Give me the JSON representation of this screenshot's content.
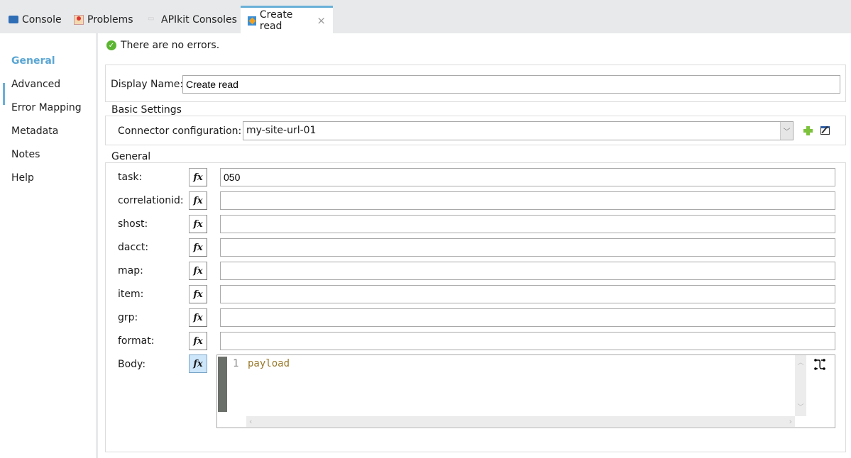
{
  "tabs": [
    {
      "label": "Console",
      "icon": "console-icon"
    },
    {
      "label": "Problems",
      "icon": "problems-icon"
    },
    {
      "label": "APIkit Consoles",
      "icon": "apikit-icon"
    },
    {
      "label": "Create read",
      "icon": "connector-icon",
      "active": true,
      "close": "×"
    }
  ],
  "nav": {
    "items": [
      "General",
      "Advanced",
      "Error Mapping",
      "Metadata",
      "Notes",
      "Help"
    ],
    "selected": "General"
  },
  "status": {
    "text": "There are no errors.",
    "icon": "check-circle-icon"
  },
  "display_name": {
    "label": "Display Name:",
    "value": "Create read"
  },
  "basic_settings": {
    "legend": "Basic Settings",
    "connector_label": "Connector configuration:",
    "connector_value": "my-site-url-01"
  },
  "general": {
    "legend": "General",
    "fx": "fx",
    "fields": [
      {
        "label": "task:",
        "value": "050"
      },
      {
        "label": "correlationid:",
        "value": ""
      },
      {
        "label": "shost:",
        "value": ""
      },
      {
        "label": "dacct:",
        "value": ""
      },
      {
        "label": "map:",
        "value": ""
      },
      {
        "label": "item:",
        "value": ""
      },
      {
        "label": "grp:",
        "value": ""
      },
      {
        "label": "format:",
        "value": ""
      }
    ],
    "body": {
      "label": "Body:",
      "line_number": "1",
      "code": "payload"
    }
  },
  "colors": {
    "accent": "#6ab0d8",
    "code": "#9a7a2c"
  }
}
